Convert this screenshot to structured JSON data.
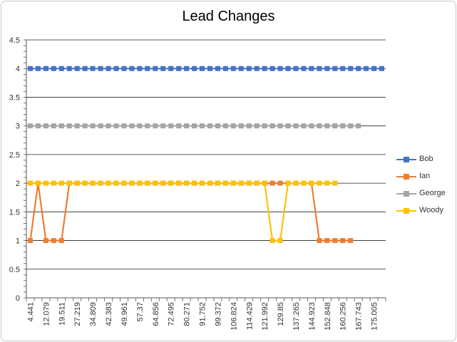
{
  "chart_data": {
    "type": "line",
    "title": "Lead Changes",
    "xlabel": "",
    "ylabel": "",
    "ylim": [
      0,
      4.5
    ],
    "y_ticks": [
      "0",
      "0.5",
      "1",
      "1.5",
      "2",
      "2.5",
      "3",
      "3.5",
      "4",
      "4.5"
    ],
    "x_tick_labels": [
      "4.441",
      "12.079",
      "19.511",
      "27.219",
      "34.809",
      "42.383",
      "49.961",
      "57.37",
      "64.856",
      "72.495",
      "80.271",
      "91.752",
      "99.372",
      "106.824",
      "114.429",
      "121.992",
      "129.85",
      "137.265",
      "144.923",
      "152.848",
      "160.256",
      "167.743",
      "175.005"
    ],
    "x_tick_every": 2,
    "num_points": 46,
    "grid": "horizontal",
    "legend_position": "right",
    "series": [
      {
        "name": "Bob",
        "color": "#4472c4",
        "values": [
          4,
          4,
          4,
          4,
          4,
          4,
          4,
          4,
          4,
          4,
          4,
          4,
          4,
          4,
          4,
          4,
          4,
          4,
          4,
          4,
          4,
          4,
          4,
          4,
          4,
          4,
          4,
          4,
          4,
          4,
          4,
          4,
          4,
          4,
          4,
          4,
          4,
          4,
          4,
          4,
          4,
          4,
          4,
          4,
          4,
          4
        ]
      },
      {
        "name": "Ian",
        "color": "#ed7d31",
        "values": [
          1,
          2,
          1,
          1,
          1,
          2,
          2,
          2,
          2,
          2,
          2,
          2,
          2,
          2,
          2,
          2,
          2,
          2,
          2,
          2,
          2,
          2,
          2,
          2,
          2,
          2,
          2,
          2,
          2,
          2,
          2,
          2,
          2,
          2,
          2,
          2,
          2,
          1,
          1,
          1,
          1,
          1,
          null,
          null,
          null,
          null
        ]
      },
      {
        "name": "George",
        "color": "#a5a5a5",
        "values": [
          3,
          3,
          3,
          3,
          3,
          3,
          3,
          3,
          3,
          3,
          3,
          3,
          3,
          3,
          3,
          3,
          3,
          3,
          3,
          3,
          3,
          3,
          3,
          3,
          3,
          3,
          3,
          3,
          3,
          3,
          3,
          3,
          3,
          3,
          3,
          3,
          3,
          3,
          3,
          3,
          3,
          3,
          3,
          null,
          null,
          null
        ]
      },
      {
        "name": "Woody",
        "color": "#ffc000",
        "values": [
          2,
          2,
          2,
          2,
          2,
          2,
          2,
          2,
          2,
          2,
          2,
          2,
          2,
          2,
          2,
          2,
          2,
          2,
          2,
          2,
          2,
          2,
          2,
          2,
          2,
          2,
          2,
          2,
          2,
          2,
          2,
          1,
          1,
          2,
          2,
          2,
          2,
          2,
          2,
          2,
          null,
          null,
          null,
          null,
          null,
          null
        ]
      }
    ]
  }
}
